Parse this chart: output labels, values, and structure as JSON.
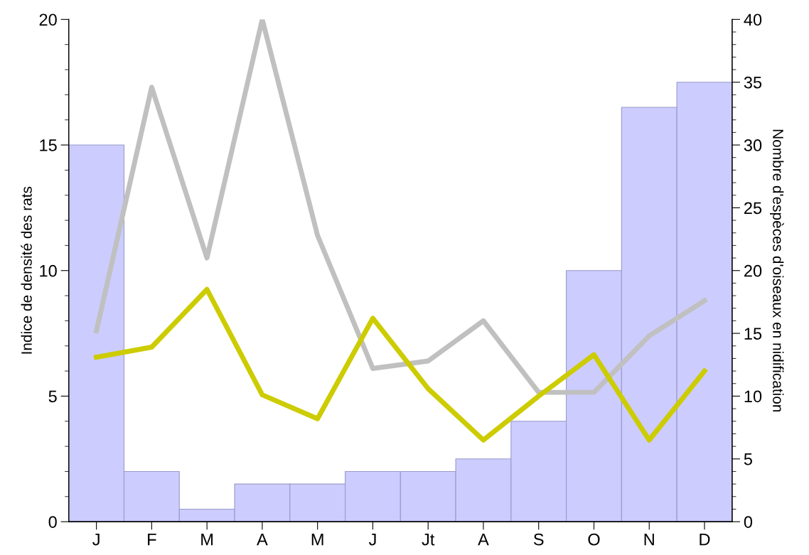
{
  "chart_data": {
    "type": "line",
    "ylabel": "Indice de densité des rats",
    "y2label": "Nombre d'espèces d'oiseaux en nidification",
    "categories": [
      "J",
      "F",
      "M",
      "A",
      "M",
      "J",
      "Jt",
      "A",
      "S",
      "O",
      "N",
      "D"
    ],
    "series": [
      {
        "type": "bar",
        "axis": "y2",
        "color": "#ccccff",
        "values": [
          30,
          4,
          1,
          3,
          3,
          4,
          4,
          5,
          8,
          20,
          33,
          35
        ]
      },
      {
        "color": "#c0c0c0",
        "values": [
          7.6,
          17.3,
          10.5,
          20,
          11.4,
          6.1,
          6.4,
          8,
          5.15,
          5.15,
          7.4,
          8.8
        ]
      },
      {
        "color": "#cccc00",
        "values": [
          6.55,
          6.95,
          9.25,
          5.05,
          4.1,
          8.1,
          5.3,
          3.25,
          5,
          6.65,
          3.25,
          6
        ]
      }
    ],
    "ylim": [
      0,
      20
    ],
    "yticks": [
      0,
      5,
      10,
      15,
      20
    ],
    "y2lim": [
      0,
      40
    ],
    "y2ticks": [
      0,
      5,
      10,
      15,
      20,
      25,
      30,
      35,
      40
    ],
    "grid": false,
    "legend": false,
    "marker": "none",
    "line_style": "solid"
  }
}
